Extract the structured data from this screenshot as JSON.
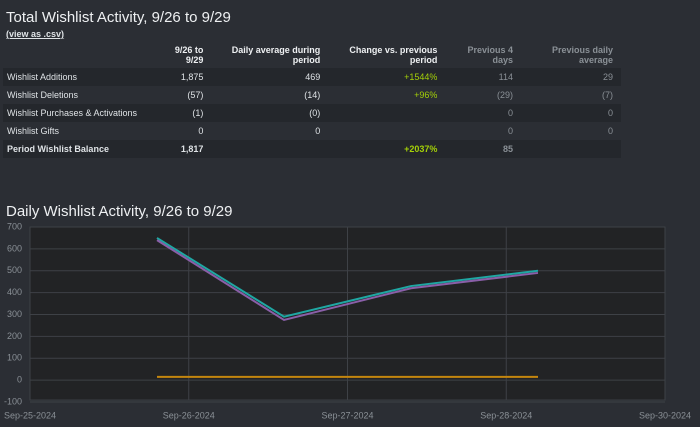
{
  "header": {
    "title": "Total Wishlist Activity, 9/26 to 9/29",
    "link": "(view as .csv)"
  },
  "table": {
    "columns": [
      null,
      "9/26 to 9/29",
      "Daily average during period",
      "Change vs. previous period",
      "Previous 4 days",
      "Previous daily average"
    ],
    "rows": [
      [
        "Wishlist Additions",
        "1,875",
        "469",
        "+1544%",
        "114",
        "29"
      ],
      [
        "Wishlist Deletions",
        "(57)",
        "(14)",
        "+96%",
        "(29)",
        "(7)"
      ],
      [
        "Wishlist Purchases & Activations",
        "(1)",
        "(0)",
        null,
        "0",
        "0"
      ],
      [
        "Wishlist Gifts",
        "0",
        "0",
        null,
        "0",
        "0"
      ],
      [
        "Period Wishlist Balance",
        "1,817",
        null,
        "+2037%",
        "85",
        null
      ]
    ]
  },
  "chart_data": {
    "type": "line",
    "title": "Daily Wishlist Activity, 9/26 to 9/29",
    "x": [
      0.8,
      1.6,
      2.4,
      3.2
    ],
    "xlim": [
      0,
      4
    ],
    "xticks": [
      {
        "value": 0,
        "label": "Sep-25-2024"
      },
      {
        "value": 1,
        "label": "Sep-26-2024"
      },
      {
        "value": 2,
        "label": "Sep-27-2024"
      },
      {
        "value": 3,
        "label": "Sep-28-2024"
      },
      {
        "value": 4,
        "label": "Sep-30-2024"
      }
    ],
    "ylim": [
      -100,
      700
    ],
    "yticks": [
      -100,
      0,
      100,
      200,
      300,
      400,
      500,
      600,
      700
    ],
    "grid": true,
    "series": [
      {
        "color": "#1fa7a3",
        "values": [
          650,
          290,
          430,
          500
        ]
      },
      {
        "color": "#8a5fa8",
        "values": [
          640,
          275,
          420,
          490
        ]
      },
      {
        "color": "#c4860e",
        "values": [
          15,
          15,
          15,
          15
        ]
      }
    ]
  }
}
